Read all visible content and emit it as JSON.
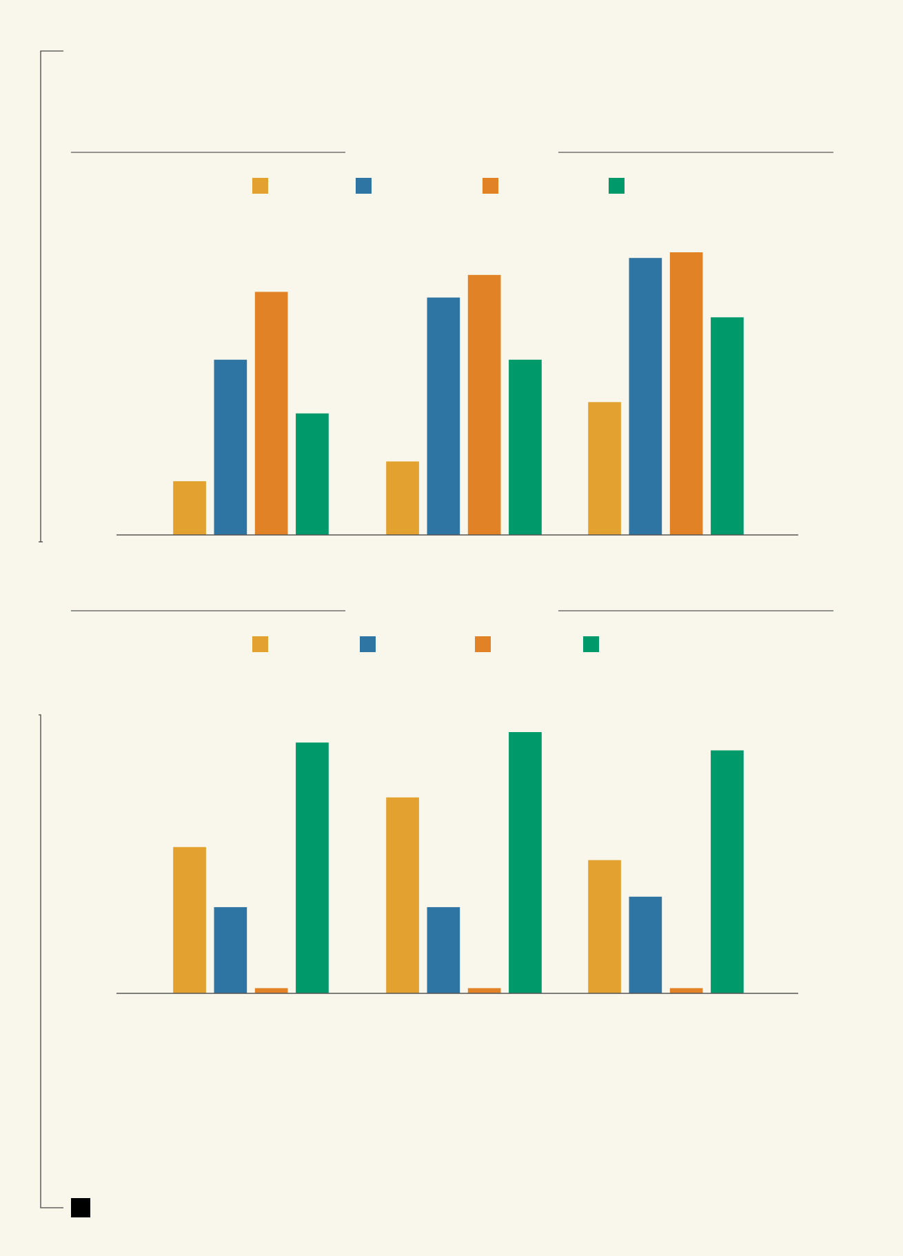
{
  "chart_data": [
    {
      "type": "bar",
      "categories": [
        null,
        null,
        null
      ],
      "series": [
        {
          "color": "#e3a22f",
          "values": [
            19,
            26,
            47
          ]
        },
        {
          "color": "#2e75a3",
          "values": [
            62,
            84,
            98
          ]
        },
        {
          "color": "#e28226",
          "values": [
            86,
            92,
            100
          ]
        },
        {
          "color": "#009a6a",
          "values": [
            43,
            62,
            77
          ]
        }
      ],
      "ylim": [
        0,
        100
      ],
      "legend": "top"
    },
    {
      "type": "bar",
      "categories": [
        null,
        null,
        null
      ],
      "series": [
        {
          "color": "#e3a22f",
          "values": [
            56,
            75,
            51
          ]
        },
        {
          "color": "#2e75a3",
          "values": [
            33,
            33,
            37
          ]
        },
        {
          "color": "#e28226",
          "values": [
            2,
            2,
            2
          ]
        },
        {
          "color": "#009a6a",
          "values": [
            96,
            100,
            93
          ]
        }
      ],
      "ylim": [
        0,
        100
      ],
      "legend": "top"
    }
  ]
}
